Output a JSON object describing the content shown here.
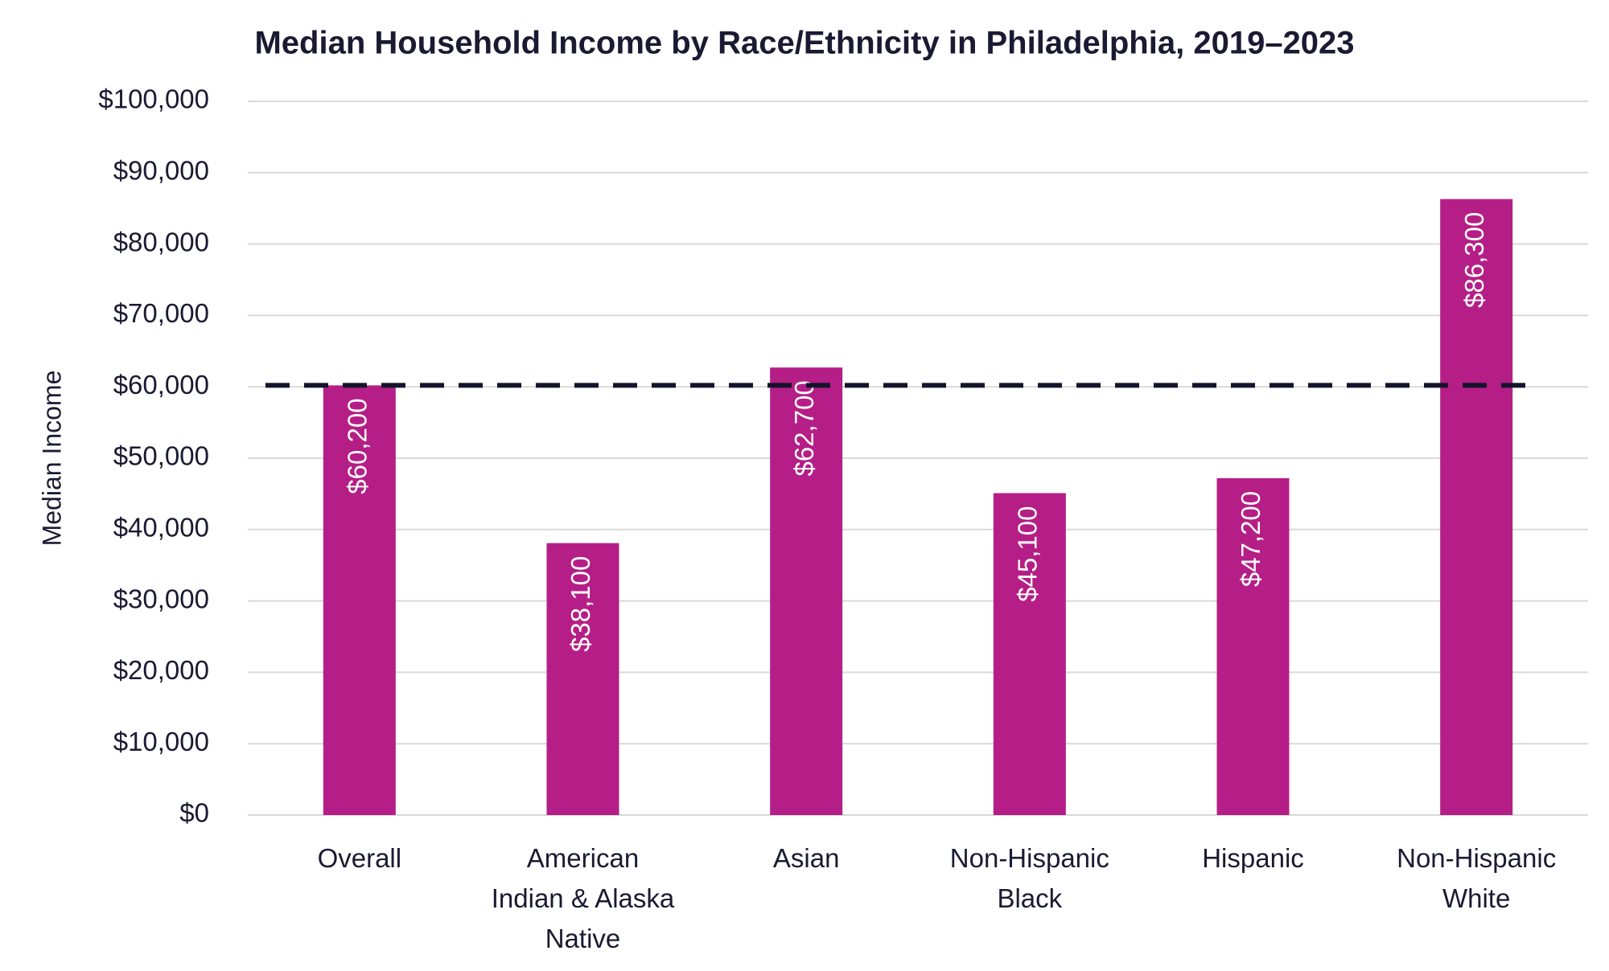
{
  "chart_data": {
    "type": "bar",
    "title": "Median Household Income by Race/Ethnicity in Philadelphia, 2019–2023",
    "y_axis_label": "Median Income",
    "categories": [
      "Overall",
      "American Indian & Alaska Native",
      "Asian",
      "Non-Hispanic Black",
      "Hispanic",
      "Non-Hispanic White"
    ],
    "values": [
      60200,
      38100,
      62700,
      45100,
      47200,
      86300
    ],
    "value_labels": [
      "$60,200",
      "$38,100",
      "$62,700",
      "$45,100",
      "$47,200",
      "$86,300"
    ],
    "color": "#b51e86",
    "reference_value": 60200,
    "ylim": [
      0,
      100000
    ],
    "yticks": [
      {
        "value": 0,
        "label": "$0"
      },
      {
        "value": 10000,
        "label": "$10,000"
      },
      {
        "value": 20000,
        "label": "$20,000"
      },
      {
        "value": 30000,
        "label": "$30,000"
      },
      {
        "value": 40000,
        "label": "$40,000"
      },
      {
        "value": 50000,
        "label": "$50,000"
      },
      {
        "value": 60000,
        "label": "$60,000"
      },
      {
        "value": 70000,
        "label": "$70,000"
      },
      {
        "value": 80000,
        "label": "$80,000"
      },
      {
        "value": 90000,
        "label": "$90,000"
      },
      {
        "value": 100000,
        "label": "$100,000"
      }
    ],
    "grid": true
  }
}
